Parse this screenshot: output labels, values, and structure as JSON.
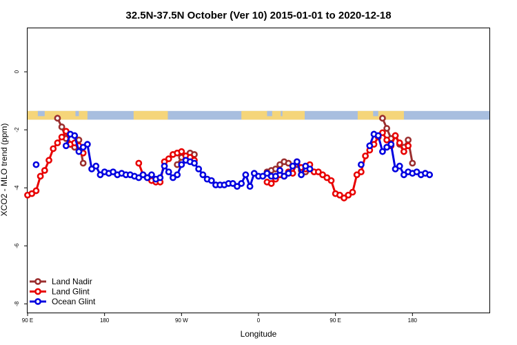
{
  "chart_data": {
    "type": "line",
    "title": "32.5N-37.5N October (Ver 10)   2015-01-01 to 2020-12-18",
    "xlabel": "Longitude",
    "ylabel": "XCO2 - MLO trend (ppm)",
    "xlim": [
      -90,
      180
    ],
    "ylim": [
      -8.3,
      1.5
    ],
    "x_ticks": [
      {
        "value": -90,
        "label": "90 E"
      },
      {
        "value": -45,
        "label": "180"
      },
      {
        "value": 0,
        "label": "90 W"
      },
      {
        "value": 45,
        "label": "0"
      },
      {
        "value": 90,
        "label": "90 E"
      },
      {
        "value": 135,
        "label": "180"
      }
    ],
    "y_ticks": [
      {
        "value": 0,
        "label": "0"
      },
      {
        "value": -2,
        "label": "-2"
      },
      {
        "value": -4,
        "label": "-4"
      },
      {
        "value": -6,
        "label": "-6"
      },
      {
        "value": -8,
        "label": "-8"
      }
    ],
    "grid": false,
    "legend_position": "bottom-left",
    "map_strip": {
      "y_range": [
        -1.35,
        -1.65
      ],
      "ocean_color": "#a8bedf",
      "land_color": "#f5d57a"
    },
    "series": [
      {
        "name": "Land Nadir",
        "color": "#9b2f2f",
        "x": [
          -72.5,
          -70,
          -67.5,
          -65,
          -62.5,
          -60,
          -57.5,
          -55,
          -52.5,
          -2.5,
          0,
          2.5,
          5,
          7.5,
          50,
          52.5,
          55,
          57.5,
          60,
          62.5,
          65,
          67.5,
          70,
          72.5,
          117.5,
          120,
          122.5,
          125,
          127.5,
          130,
          132.5,
          135,
          137.5
        ],
        "y": [
          -1.6,
          -1.9,
          -2.3,
          -2.5,
          -2.6,
          -2.35,
          -3.15,
          null,
          null,
          -3.2,
          -2.95,
          -2.9,
          -2.8,
          -2.85,
          -3.45,
          -3.4,
          -3.35,
          -3.2,
          -3.1,
          -3.15,
          -3.25,
          -3.2,
          -3.4,
          -3.45,
          -1.6,
          -1.95,
          -2.3,
          -2.2,
          -2.5,
          -2.6,
          -2.35,
          -3.15,
          null
        ]
      },
      {
        "name": "Land Glint",
        "color": "#e80000",
        "x": [
          -90,
          -87.5,
          -85,
          -82.5,
          -80,
          -77.5,
          -75,
          -72.5,
          -70,
          -67.5,
          -65,
          -62.5,
          -60,
          -57.5,
          -25,
          -22.5,
          -20,
          -17.5,
          -15,
          -12.5,
          -10,
          -7.5,
          -5,
          -2.5,
          0,
          2.5,
          5,
          7.5,
          50,
          52.5,
          55,
          57.5,
          60,
          62.5,
          65,
          67.5,
          70,
          72.5,
          75,
          77.5,
          80,
          82.5,
          85,
          87.5,
          90,
          92.5,
          95,
          97.5,
          100,
          102.5,
          105,
          107.5,
          110,
          112.5,
          115,
          117.5,
          120,
          122.5,
          125,
          127.5,
          130,
          132.5
        ],
        "y": [
          -4.25,
          -4.2,
          -4.1,
          -3.6,
          -3.4,
          -3.05,
          -2.65,
          -2.45,
          -2.25,
          -2.05,
          -2.5,
          -2.45,
          -2.55,
          -2.8,
          -3.15,
          -3.55,
          -3.65,
          -3.75,
          -3.8,
          -3.8,
          -3.1,
          -3.0,
          -2.85,
          -2.8,
          -2.75,
          -2.9,
          -2.95,
          -3.05,
          -3.8,
          -3.85,
          -3.7,
          -3.55,
          -3.6,
          -3.45,
          -3.5,
          -3.1,
          -3.3,
          -3.35,
          -3.2,
          -3.45,
          -3.45,
          -3.55,
          -3.65,
          -3.75,
          -4.2,
          -4.25,
          -4.35,
          -4.25,
          -4.15,
          -3.55,
          -3.45,
          -2.9,
          -2.7,
          -2.5,
          -2.25,
          -2.1,
          -2.35,
          -2.55,
          -2.2,
          -2.45,
          -2.75,
          -2.55
        ]
      },
      {
        "name": "Ocean Glint",
        "color": "#0000e0",
        "x": [
          -85,
          -67.5,
          -65,
          -62.5,
          -60,
          -57.5,
          -55,
          -52.5,
          -50,
          -47.5,
          -45,
          -42.5,
          -40,
          -37.5,
          -35,
          -32.5,
          -30,
          -27.5,
          -25,
          -22.5,
          -20,
          -17.5,
          -15,
          -12.5,
          -10,
          -7.5,
          -5,
          -2.5,
          0,
          2.5,
          5,
          7.5,
          10,
          12.5,
          15,
          17.5,
          20,
          22.5,
          25,
          27.5,
          30,
          32.5,
          35,
          37.5,
          40,
          42.5,
          45,
          47.5,
          50,
          52.5,
          55,
          57.5,
          60,
          62.5,
          65,
          67.5,
          70,
          72.5,
          75,
          105,
          110,
          112.5,
          115,
          117.5,
          120,
          122.5,
          125,
          127.5,
          130,
          132.5,
          135,
          137.5,
          140,
          142.5,
          145
        ],
        "y": [
          -3.2,
          -2.55,
          -2.15,
          -2.2,
          -2.75,
          -2.6,
          -2.5,
          -3.35,
          -3.25,
          -3.55,
          -3.45,
          -3.5,
          -3.45,
          -3.55,
          -3.5,
          -3.55,
          -3.55,
          -3.6,
          -3.65,
          -3.55,
          -3.65,
          -3.55,
          -3.7,
          -3.65,
          -3.25,
          -3.45,
          -3.65,
          -3.55,
          -3.2,
          -3.05,
          -3.1,
          -3.15,
          -3.35,
          -3.55,
          -3.7,
          -3.75,
          -3.9,
          -3.9,
          -3.9,
          -3.85,
          -3.85,
          -3.95,
          -3.85,
          -3.55,
          -3.95,
          -3.5,
          -3.6,
          -3.6,
          -3.5,
          -3.6,
          -3.6,
          -3.4,
          -3.6,
          -3.5,
          -3.25,
          -3.1,
          -3.55,
          -3.25,
          -3.35,
          -3.2,
          -2.55,
          -2.15,
          -2.2,
          -2.75,
          -2.6,
          -2.5,
          -3.35,
          -3.25,
          -3.55,
          -3.45,
          -3.5,
          -3.45,
          -3.55,
          -3.5,
          -3.55
        ]
      }
    ]
  }
}
